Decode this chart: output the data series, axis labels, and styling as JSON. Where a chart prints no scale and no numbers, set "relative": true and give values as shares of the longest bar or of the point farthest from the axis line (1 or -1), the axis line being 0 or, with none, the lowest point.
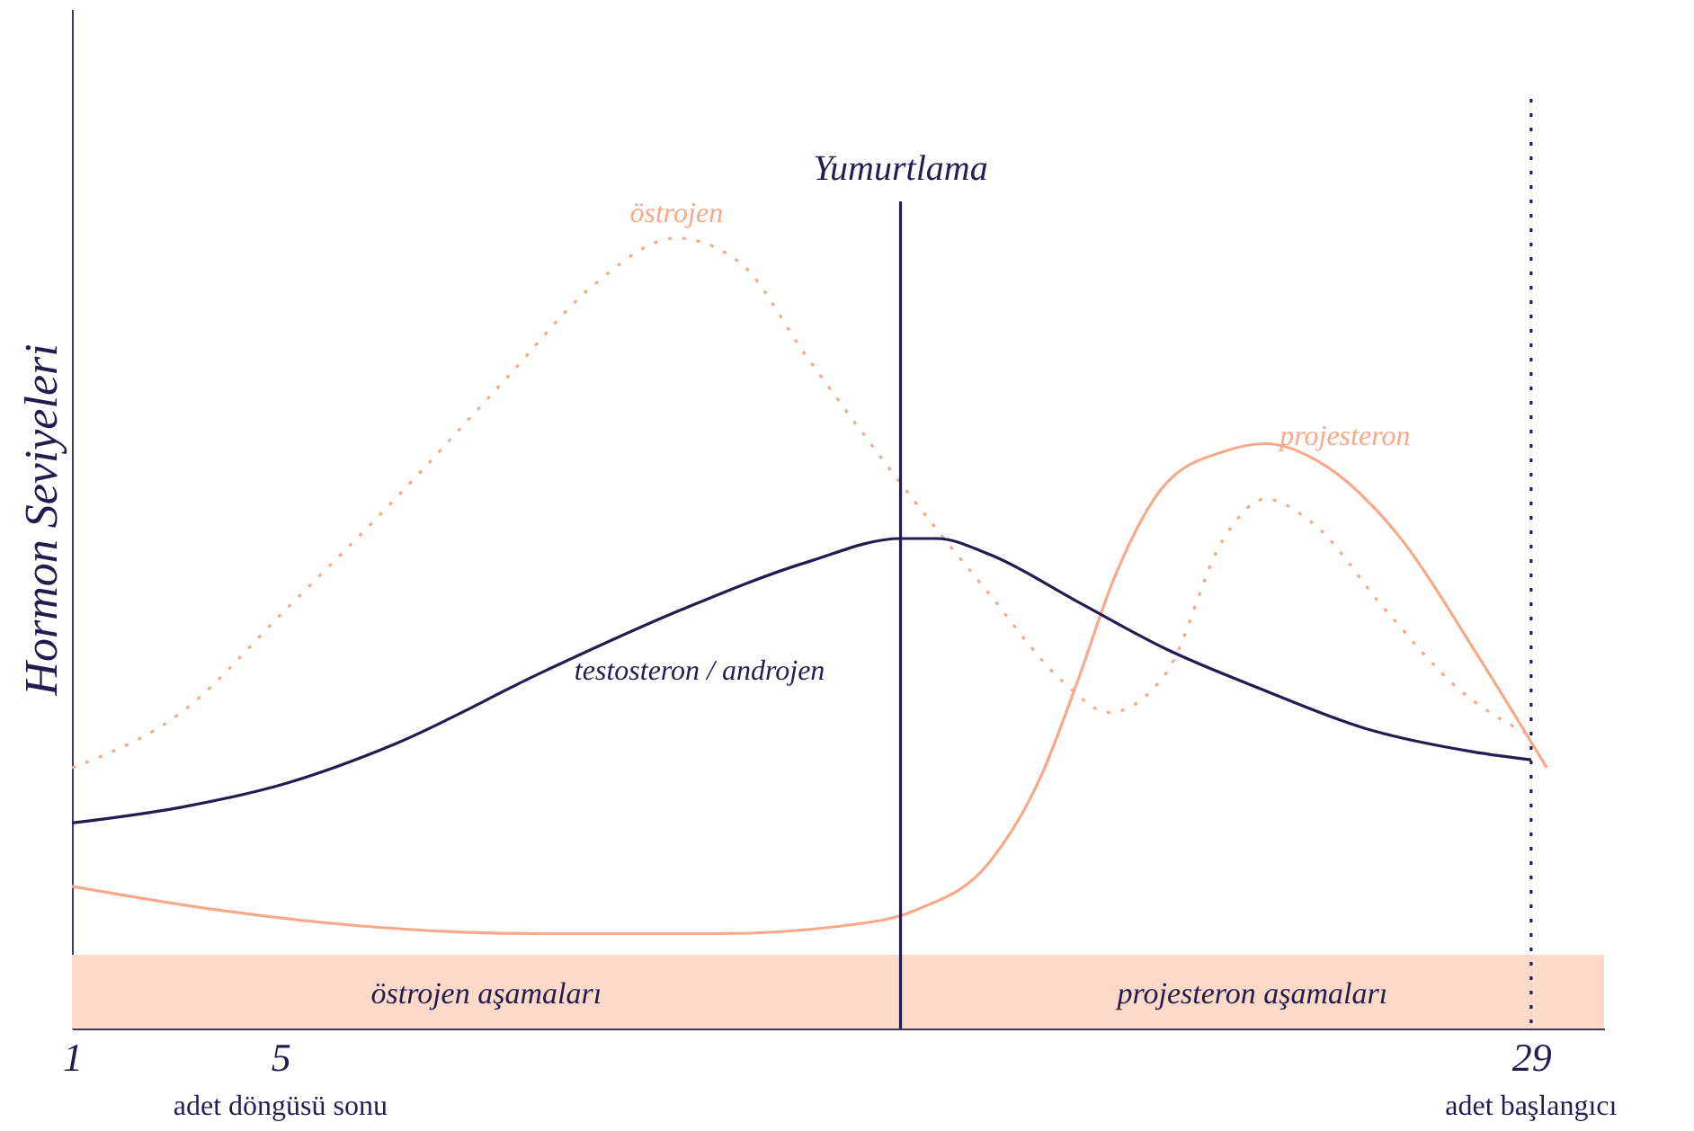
{
  "chart_data": {
    "type": "line",
    "relative": true,
    "ylabel": "Hormon Seviyeleri",
    "xlim": [
      1,
      30.4
    ],
    "xticks": [
      1,
      5,
      29
    ],
    "grid": false,
    "series": [
      {
        "name": "östrojen",
        "color": "#f7a98a",
        "line_style": "dotted",
        "x": [
          1,
          3.1,
          5.1,
          7.2,
          9.3,
          11,
          12.6,
          13.8,
          15.1,
          16.9,
          18.6,
          20,
          20.9,
          22,
          23.1,
          23.9,
          24.8,
          26.2,
          27.6,
          29
        ],
        "values": [
          0.33,
          0.4,
          0.53,
          0.67,
          0.82,
          0.94,
          1.0,
          0.97,
          0.85,
          0.69,
          0.55,
          0.44,
          0.4,
          0.45,
          0.62,
          0.67,
          0.64,
          0.53,
          0.43,
          0.37
        ]
      },
      {
        "name": "projesteron",
        "color": "#f7a98a",
        "line_style": "solid",
        "x": [
          1,
          3.8,
          6.5,
          10,
          13.4,
          15.8,
          17.2,
          18.6,
          19.6,
          20.3,
          21,
          22,
          23.1,
          23.9,
          25.1,
          26.5,
          27.9,
          29.3
        ],
        "values": [
          0.18,
          0.15,
          0.13,
          0.12,
          0.12,
          0.13,
          0.15,
          0.21,
          0.32,
          0.44,
          0.57,
          0.69,
          0.73,
          0.74,
          0.71,
          0.62,
          0.48,
          0.33
        ]
      },
      {
        "name": "testosteron / androjen",
        "color": "#221c50",
        "line_style": "solid",
        "x": [
          1,
          3.1,
          5.1,
          7.2,
          10,
          12.7,
          15.1,
          16.9,
          17.6,
          18.6,
          20.3,
          22,
          23.8,
          25.8,
          27.9,
          29
        ],
        "values": [
          0.26,
          0.28,
          0.31,
          0.36,
          0.45,
          0.53,
          0.59,
          0.62,
          0.62,
          0.6,
          0.54,
          0.48,
          0.43,
          0.38,
          0.35,
          0.34
        ]
      }
    ],
    "ref_lines": [
      {
        "axis": "x",
        "value": 16.9,
        "label": "Yumurtlama",
        "color": "#221c50",
        "line_style": "solid"
      },
      {
        "axis": "x",
        "value": 29,
        "color": "#221c50",
        "line_style": "dotted"
      }
    ],
    "bands": [
      {
        "axis": "x",
        "from": 1,
        "to": 16.9,
        "label": "östrojen aşamaları",
        "color": "#fdd9c8"
      },
      {
        "axis": "x",
        "from": 16.9,
        "to": 30.4,
        "label": "projesteron aşamaları",
        "color": "#fdd9c8"
      }
    ],
    "annotations": [
      "adet döngüsü sonu",
      "adet başlangıcı"
    ]
  }
}
